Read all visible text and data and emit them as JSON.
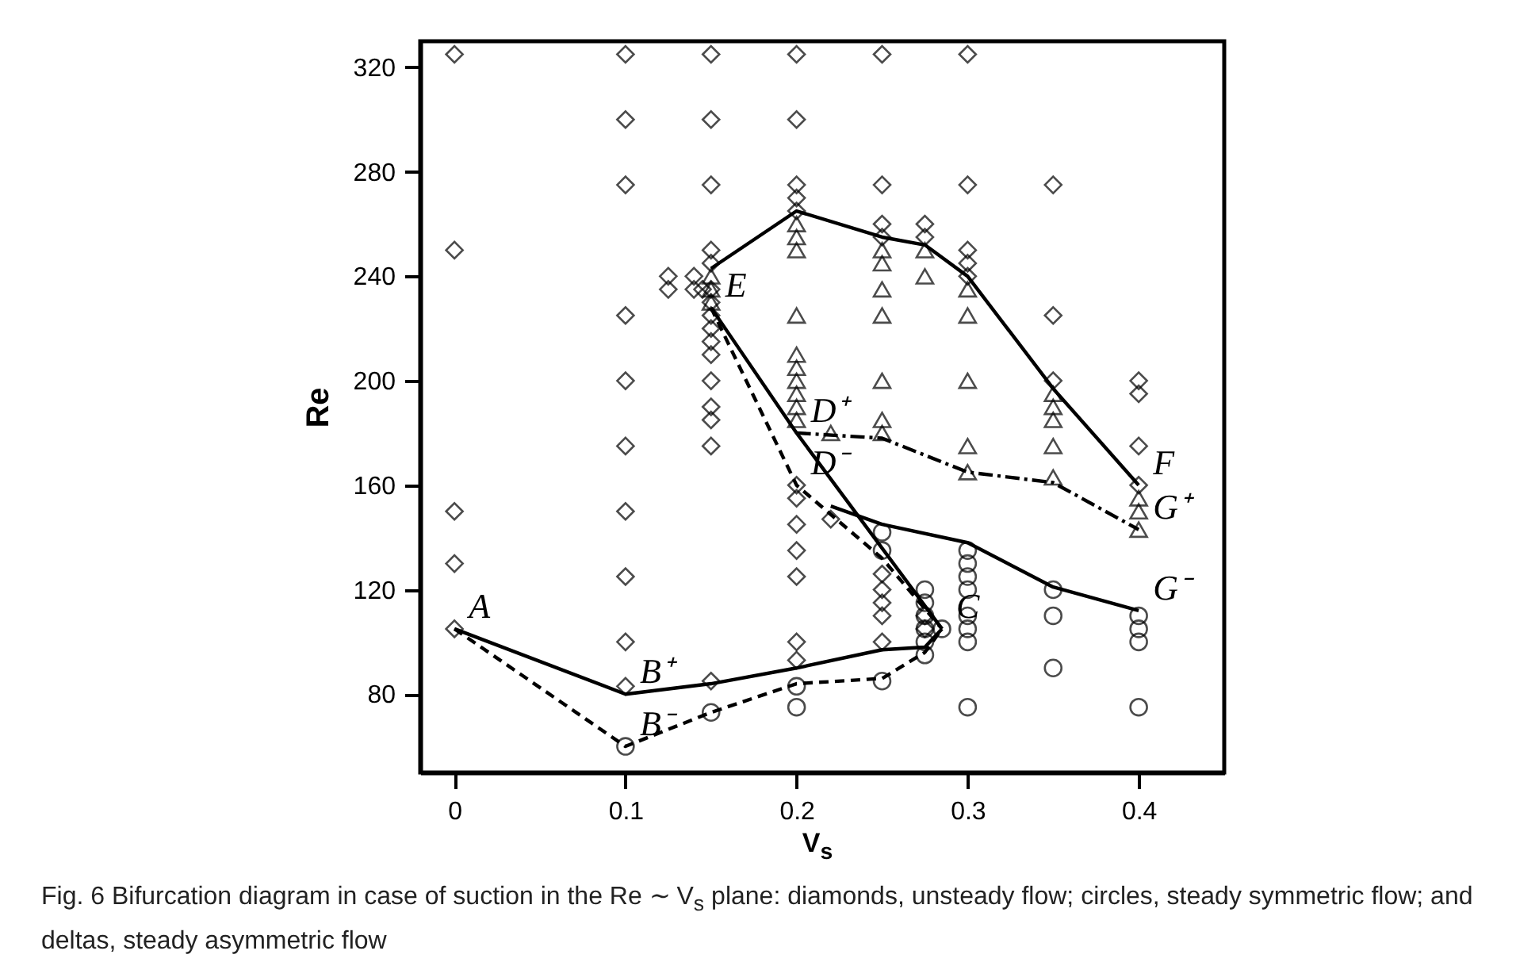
{
  "chart_data": {
    "type": "scatter",
    "xlabel": "V$_{s}$",
    "ylabel": "Re",
    "xlim": [
      -0.02,
      0.45
    ],
    "xticks": [
      0,
      0.1,
      0.2,
      0.3,
      0.4
    ],
    "ylim": [
      50,
      330
    ],
    "yticks": [
      80,
      120,
      160,
      200,
      240,
      280,
      320
    ],
    "grid": false,
    "series": [
      {
        "marker": "diamond",
        "color": "#000000",
        "x": [
          0,
          0,
          0,
          0,
          0,
          0.1,
          0.1,
          0.1,
          0.1,
          0.1,
          0.1,
          0.1,
          0.1,
          0.1,
          0.1,
          0.125,
          0.125,
          0.14,
          0.14,
          0.145,
          0.15,
          0.15,
          0.15,
          0.15,
          0.15,
          0.15,
          0.15,
          0.15,
          0.15,
          0.15,
          0.15,
          0.15,
          0.15,
          0.15,
          0.15,
          0.15,
          0.2,
          0.2,
          0.2,
          0.2,
          0.2,
          0.2,
          0.2,
          0.2,
          0.2,
          0.2,
          0.2,
          0.2,
          0.22,
          0.25,
          0.25,
          0.25,
          0.25,
          0.25,
          0.25,
          0.25,
          0.25,
          0.25,
          0.275,
          0.275,
          0.275,
          0.275,
          0.3,
          0.3,
          0.3,
          0.3,
          0.3,
          0.35,
          0.35,
          0.35,
          0.4,
          0.4,
          0.4,
          0.4
        ],
        "values": [
          325,
          250,
          150,
          130,
          105,
          325,
          300,
          275,
          225,
          200,
          175,
          150,
          125,
          100,
          83,
          240,
          235,
          240,
          235,
          235,
          325,
          300,
          275,
          250,
          245,
          235,
          230,
          225,
          220,
          215,
          210,
          200,
          190,
          185,
          175,
          85,
          325,
          300,
          275,
          270,
          265,
          160,
          155,
          145,
          135,
          125,
          100,
          93,
          147,
          325,
          275,
          260,
          255,
          126,
          120,
          115,
          110,
          100,
          260,
          255,
          110,
          105,
          325,
          275,
          250,
          245,
          240,
          275,
          225,
          200,
          200,
          195,
          175,
          160
        ]
      },
      {
        "marker": "circle",
        "color": "#000000",
        "x": [
          0.1,
          0.15,
          0.2,
          0.2,
          0.25,
          0.25,
          0.25,
          0.275,
          0.275,
          0.275,
          0.275,
          0.275,
          0.275,
          0.285,
          0.3,
          0.3,
          0.3,
          0.3,
          0.3,
          0.3,
          0.3,
          0.3,
          0.35,
          0.35,
          0.35,
          0.4,
          0.4,
          0.4,
          0.4
        ],
        "values": [
          60,
          73,
          83,
          75,
          142,
          135,
          85,
          120,
          115,
          110,
          105,
          100,
          95,
          105,
          135,
          130,
          125,
          120,
          110,
          105,
          100,
          75,
          120,
          110,
          90,
          110,
          105,
          100,
          75
        ]
      },
      {
        "marker": "triangle",
        "color": "#000000",
        "x": [
          0.15,
          0.15,
          0.15,
          0.2,
          0.2,
          0.2,
          0.2,
          0.2,
          0.2,
          0.2,
          0.2,
          0.2,
          0.2,
          0.22,
          0.25,
          0.25,
          0.25,
          0.25,
          0.25,
          0.25,
          0.25,
          0.275,
          0.275,
          0.3,
          0.3,
          0.3,
          0.3,
          0.3,
          0.35,
          0.35,
          0.35,
          0.35,
          0.35,
          0.4,
          0.4,
          0.4
        ],
        "values": [
          240,
          235,
          230,
          260,
          255,
          250,
          225,
          210,
          205,
          200,
          195,
          190,
          185,
          180,
          250,
          245,
          235,
          225,
          200,
          185,
          180,
          250,
          240,
          235,
          225,
          200,
          175,
          165,
          195,
          190,
          185,
          175,
          163,
          155,
          150,
          143
        ]
      },
      {
        "type": "line",
        "marker": "none",
        "line_style": "solid",
        "color": "#000000",
        "x": [
          0.15,
          0.2,
          0.25,
          0.275,
          0.3,
          0.35,
          0.4
        ],
        "values": [
          243,
          265,
          255,
          252,
          240,
          197,
          160
        ]
      },
      {
        "type": "line",
        "marker": "none",
        "line_style": "solid",
        "color": "#000000",
        "x": [
          0.15,
          0.2,
          0.285
        ],
        "values": [
          228,
          180,
          105
        ]
      },
      {
        "type": "line",
        "marker": "none",
        "line_style": "solid",
        "color": "#000000",
        "x": [
          0,
          0.1,
          0.15,
          0.2,
          0.25,
          0.275,
          0.285
        ],
        "values": [
          105,
          80,
          84,
          90,
          97,
          98,
          105
        ]
      },
      {
        "type": "line",
        "marker": "none",
        "line_style": "dashed",
        "color": "#000000",
        "x": [
          0,
          0.1,
          0.15,
          0.2,
          0.25,
          0.275,
          0.285
        ],
        "values": [
          105,
          60,
          73,
          84,
          86,
          96,
          105
        ]
      },
      {
        "type": "line",
        "marker": "none",
        "line_style": "dashed",
        "color": "#000000",
        "x": [
          0.15,
          0.2,
          0.25,
          0.285
        ],
        "values": [
          228,
          160,
          132,
          105
        ]
      },
      {
        "type": "line",
        "marker": "none",
        "line_style": "dashdot",
        "color": "#000000",
        "x": [
          0.2,
          0.25,
          0.3,
          0.35,
          0.4
        ],
        "values": [
          180,
          178,
          165,
          161,
          143
        ]
      },
      {
        "type": "line",
        "marker": "none",
        "line_style": "solid",
        "color": "#000000",
        "x": [
          0.22,
          0.25,
          0.3,
          0.35,
          0.4
        ],
        "values": [
          152,
          145,
          138,
          121,
          112
        ]
      }
    ],
    "annotations": [
      {
        "text": "A",
        "x": 0,
        "y": 105
      },
      {
        "text": "B⁺",
        "x": 0.1,
        "y": 80
      },
      {
        "text": "B⁻",
        "x": 0.1,
        "y": 60
      },
      {
        "text": "C",
        "x": 0.285,
        "y": 105
      },
      {
        "text": "D⁺",
        "x": 0.2,
        "y": 180
      },
      {
        "text": "D⁻",
        "x": 0.2,
        "y": 160
      },
      {
        "text": "E",
        "x": 0.15,
        "y": 228
      },
      {
        "text": "F",
        "x": 0.4,
        "y": 160
      },
      {
        "text": "G⁺",
        "x": 0.4,
        "y": 143
      },
      {
        "text": "G⁻",
        "x": 0.4,
        "y": 112
      },
      "Fig. 6 Bifurcation diagram in case of suction in the Re ∼ V$_{s}$ plane: diamonds, unsteady flow; circles, steady symmetric flow; and deltas, steady asymmetric flow"
    ]
  }
}
